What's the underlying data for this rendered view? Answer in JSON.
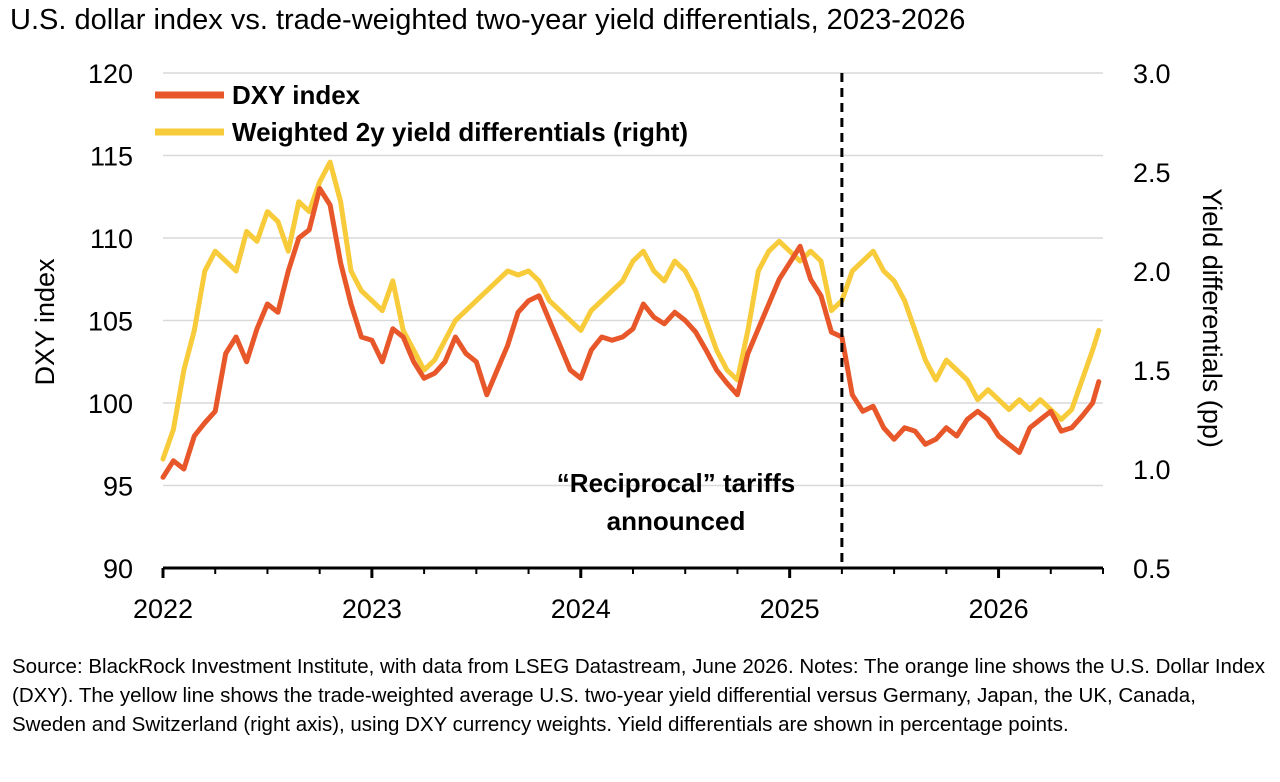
{
  "title": "U.S. dollar index vs. trade-weighted two-year yield differentials, 2023-2026",
  "notes": "Source: BlackRock Investment Institute, with data from LSEG Datastream, June 2026. Notes: The orange line shows the U.S. Dollar Index (DXY). The yellow line shows the trade-weighted average U.S. two-year yield differential versus Germany, Japan, the UK, Canada, Sweden and Switzerland (right axis), using DXY currency weights. Yield differentials are shown in percentage points.",
  "colors": {
    "dxy": "#e8572a",
    "yield": "#f7cb3a",
    "grid": "#d9d9d9",
    "vline": "#000000"
  },
  "chart_data": {
    "type": "line",
    "xlabel": "",
    "ylabel": "DXY index",
    "ylabel_right": "Yield differentials (pp)",
    "xlim": [
      2022.0,
      2026.5
    ],
    "ylim": [
      90,
      120
    ],
    "ylim_right": [
      0.5,
      3.0
    ],
    "x_ticks": [
      "2022",
      "2023",
      "2024",
      "2025",
      "2026"
    ],
    "y_ticks": [
      "90",
      "95",
      "100",
      "105",
      "110",
      "115",
      "120"
    ],
    "y_ticks_right": [
      "0.5",
      "1.0",
      "1.5",
      "2.0",
      "2.5",
      "3.0"
    ],
    "grid": "horizontal",
    "legend_position": "top-left",
    "annotation": {
      "text_line1": "“Reciprocal” tariffs",
      "text_line2": "announced",
      "x": 2025.25
    },
    "series": [
      {
        "name": "DXY index",
        "axis": "left",
        "x": [
          2022.0,
          2022.05,
          2022.1,
          2022.15,
          2022.2,
          2022.25,
          2022.3,
          2022.35,
          2022.4,
          2022.45,
          2022.5,
          2022.55,
          2022.6,
          2022.65,
          2022.7,
          2022.75,
          2022.8,
          2022.85,
          2022.9,
          2022.95,
          2023.0,
          2023.05,
          2023.1,
          2023.15,
          2023.2,
          2023.25,
          2023.3,
          2023.35,
          2023.4,
          2023.45,
          2023.5,
          2023.55,
          2023.6,
          2023.65,
          2023.7,
          2023.75,
          2023.8,
          2023.85,
          2023.9,
          2023.95,
          2024.0,
          2024.05,
          2024.1,
          2024.15,
          2024.2,
          2024.25,
          2024.3,
          2024.35,
          2024.4,
          2024.45,
          2024.5,
          2024.55,
          2024.6,
          2024.65,
          2024.7,
          2024.75,
          2024.8,
          2024.85,
          2024.9,
          2024.95,
          2025.0,
          2025.05,
          2025.1,
          2025.15,
          2025.2,
          2025.25,
          2025.3,
          2025.35,
          2025.4,
          2025.45,
          2025.5,
          2025.55,
          2025.6,
          2025.65,
          2025.7,
          2025.75,
          2025.8,
          2025.85,
          2025.9,
          2025.95,
          2026.0,
          2026.05,
          2026.1,
          2026.15,
          2026.2,
          2026.25,
          2026.3,
          2026.35,
          2026.4,
          2026.45,
          2026.48
        ],
        "values": [
          95.5,
          96.5,
          96.0,
          98.0,
          98.8,
          99.5,
          103.0,
          104.0,
          102.5,
          104.5,
          106.0,
          105.5,
          108.0,
          110.0,
          110.5,
          113.0,
          112.0,
          108.5,
          106.0,
          104.0,
          103.8,
          102.5,
          104.5,
          104.0,
          102.5,
          101.5,
          101.8,
          102.5,
          104.0,
          103.0,
          102.5,
          100.5,
          102.0,
          103.5,
          105.5,
          106.2,
          106.5,
          105.0,
          103.5,
          102.0,
          101.5,
          103.2,
          104.0,
          103.8,
          104.0,
          104.5,
          106.0,
          105.2,
          104.8,
          105.5,
          105.0,
          104.3,
          103.2,
          102.0,
          101.2,
          100.5,
          103.0,
          104.5,
          106.0,
          107.5,
          108.5,
          109.5,
          107.5,
          106.5,
          104.3,
          104.0,
          100.5,
          99.5,
          99.8,
          98.5,
          97.8,
          98.5,
          98.3,
          97.5,
          97.8,
          98.5,
          98.0,
          99.0,
          99.5,
          99.0,
          98.0,
          97.5,
          97.0,
          98.5,
          99.0,
          99.5,
          98.3,
          98.5,
          99.2,
          100.0,
          101.3
        ]
      },
      {
        "name": "Weighted 2y yield differentials (right)",
        "axis": "right",
        "x": [
          2022.0,
          2022.05,
          2022.1,
          2022.15,
          2022.2,
          2022.25,
          2022.3,
          2022.35,
          2022.4,
          2022.45,
          2022.5,
          2022.55,
          2022.6,
          2022.65,
          2022.7,
          2022.75,
          2022.8,
          2022.85,
          2022.9,
          2022.95,
          2023.0,
          2023.05,
          2023.1,
          2023.15,
          2023.2,
          2023.25,
          2023.3,
          2023.35,
          2023.4,
          2023.45,
          2023.5,
          2023.55,
          2023.6,
          2023.65,
          2023.7,
          2023.75,
          2023.8,
          2023.85,
          2023.9,
          2023.95,
          2024.0,
          2024.05,
          2024.1,
          2024.15,
          2024.2,
          2024.25,
          2024.3,
          2024.35,
          2024.4,
          2024.45,
          2024.5,
          2024.55,
          2024.6,
          2024.65,
          2024.7,
          2024.75,
          2024.8,
          2024.85,
          2024.9,
          2024.95,
          2025.0,
          2025.05,
          2025.1,
          2025.15,
          2025.2,
          2025.25,
          2025.3,
          2025.35,
          2025.4,
          2025.45,
          2025.5,
          2025.55,
          2025.6,
          2025.65,
          2025.7,
          2025.75,
          2025.8,
          2025.85,
          2025.9,
          2025.95,
          2026.0,
          2026.05,
          2026.1,
          2026.15,
          2026.2,
          2026.25,
          2026.3,
          2026.35,
          2026.4,
          2026.45,
          2026.48
        ],
        "values": [
          1.05,
          1.2,
          1.5,
          1.7,
          2.0,
          2.1,
          2.05,
          2.0,
          2.2,
          2.15,
          2.3,
          2.25,
          2.1,
          2.35,
          2.3,
          2.45,
          2.55,
          2.35,
          2.0,
          1.9,
          1.85,
          1.8,
          1.95,
          1.7,
          1.6,
          1.5,
          1.55,
          1.65,
          1.75,
          1.8,
          1.85,
          1.9,
          1.95,
          2.0,
          1.98,
          2.0,
          1.95,
          1.85,
          1.8,
          1.75,
          1.7,
          1.8,
          1.85,
          1.9,
          1.95,
          2.05,
          2.1,
          2.0,
          1.95,
          2.05,
          2.0,
          1.9,
          1.75,
          1.6,
          1.5,
          1.45,
          1.7,
          2.0,
          2.1,
          2.15,
          2.1,
          2.05,
          2.1,
          2.05,
          1.8,
          1.85,
          2.0,
          2.05,
          2.1,
          2.0,
          1.95,
          1.85,
          1.7,
          1.55,
          1.45,
          1.55,
          1.5,
          1.45,
          1.35,
          1.4,
          1.35,
          1.3,
          1.35,
          1.3,
          1.35,
          1.3,
          1.25,
          1.3,
          1.45,
          1.6,
          1.7
        ]
      }
    ]
  }
}
